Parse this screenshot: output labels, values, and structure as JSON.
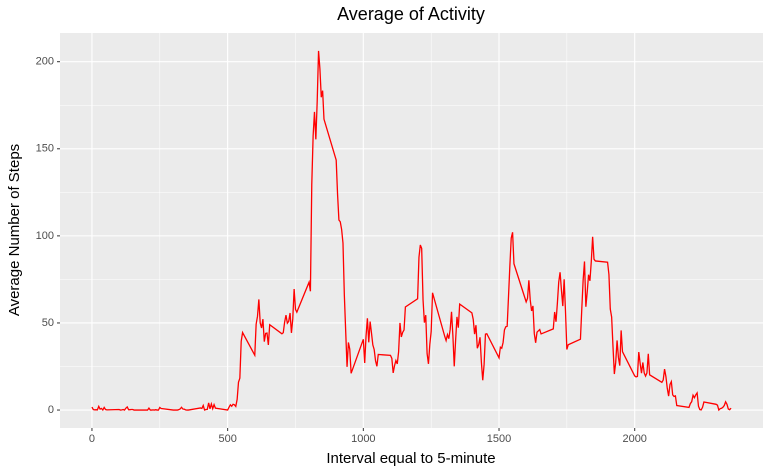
{
  "chart_data": {
    "type": "line",
    "title": "Average of Activity",
    "x_label": "Interval equal to 5-minute",
    "y_label": "Average Number of Steps",
    "xlim": [
      -117.75,
      2472.75
    ],
    "xticks": [
      0,
      500,
      1000,
      1500,
      2000
    ],
    "ylim": [
      -10.31,
      216.48
    ],
    "yticks": [
      0,
      50,
      100,
      150,
      200
    ],
    "grid": true,
    "series": [
      {
        "color": "#ff0000",
        "x": [
          0,
          5,
          10,
          15,
          20,
          25,
          30,
          35,
          40,
          45,
          50,
          55,
          100,
          105,
          110,
          115,
          120,
          125,
          130,
          135,
          140,
          145,
          150,
          155,
          200,
          205,
          210,
          215,
          220,
          225,
          230,
          235,
          240,
          245,
          250,
          255,
          300,
          305,
          310,
          315,
          320,
          325,
          330,
          335,
          340,
          345,
          350,
          355,
          400,
          405,
          410,
          415,
          420,
          425,
          430,
          435,
          440,
          445,
          450,
          455,
          500,
          505,
          510,
          515,
          520,
          525,
          530,
          535,
          540,
          545,
          550,
          555,
          600,
          605,
          610,
          615,
          620,
          625,
          630,
          635,
          640,
          645,
          650,
          655,
          700,
          705,
          710,
          715,
          720,
          725,
          730,
          735,
          740,
          745,
          750,
          755,
          800,
          805,
          810,
          815,
          820,
          825,
          830,
          835,
          840,
          845,
          850,
          855,
          900,
          905,
          910,
          915,
          920,
          925,
          930,
          935,
          940,
          945,
          950,
          955,
          1000,
          1005,
          1010,
          1015,
          1020,
          1025,
          1030,
          1035,
          1040,
          1045,
          1050,
          1055,
          1100,
          1105,
          1110,
          1115,
          1120,
          1125,
          1130,
          1135,
          1140,
          1145,
          1150,
          1155,
          1200,
          1205,
          1210,
          1215,
          1220,
          1225,
          1230,
          1235,
          1240,
          1245,
          1250,
          1255,
          1300,
          1305,
          1310,
          1315,
          1320,
          1325,
          1330,
          1335,
          1340,
          1345,
          1350,
          1355,
          1400,
          1405,
          1410,
          1415,
          1420,
          1425,
          1430,
          1435,
          1440,
          1445,
          1450,
          1455,
          1500,
          1505,
          1510,
          1515,
          1520,
          1525,
          1530,
          1535,
          1540,
          1545,
          1550,
          1555,
          1600,
          1605,
          1610,
          1615,
          1620,
          1625,
          1630,
          1635,
          1640,
          1645,
          1650,
          1655,
          1700,
          1705,
          1710,
          1715,
          1720,
          1725,
          1730,
          1735,
          1740,
          1745,
          1750,
          1755,
          1800,
          1805,
          1810,
          1815,
          1820,
          1825,
          1830,
          1835,
          1840,
          1845,
          1850,
          1855,
          1900,
          1905,
          1910,
          1915,
          1920,
          1925,
          1930,
          1935,
          1940,
          1945,
          1950,
          1955,
          2000,
          2005,
          2010,
          2015,
          2020,
          2025,
          2030,
          2035,
          2040,
          2045,
          2050,
          2055,
          2100,
          2105,
          2110,
          2115,
          2120,
          2125,
          2130,
          2135,
          2140,
          2145,
          2150,
          2155,
          2200,
          2205,
          2210,
          2215,
          2220,
          2225,
          2230,
          2235,
          2240,
          2245,
          2250,
          2255,
          2300,
          2305,
          2310,
          2315,
          2320,
          2325,
          2330,
          2335,
          2340,
          2345,
          2350,
          2355
        ],
        "values": [
          1.7,
          0.3,
          0.1,
          0.2,
          0.1,
          2.1,
          0.5,
          0.9,
          0,
          1.5,
          0.3,
          0.1,
          0.3,
          0,
          0.1,
          0.3,
          0,
          1.1,
          1.8,
          0.2,
          0.2,
          0.3,
          0.3,
          0,
          0,
          0,
          1.1,
          0,
          0,
          0.1,
          0,
          0.2,
          0,
          0,
          1.5,
          0.9,
          0,
          0,
          0,
          0,
          0.2,
          0.6,
          1.6,
          0.6,
          0.5,
          0.1,
          0,
          0,
          1.2,
          0.9,
          2.6,
          0,
          0.3,
          0.4,
          4.1,
          0.7,
          3.5,
          0.8,
          3.1,
          1.1,
          0,
          1.6,
          3,
          2.2,
          3.3,
          3,
          2.1,
          6.1,
          16,
          18.3,
          39.5,
          44.5,
          31.5,
          49.3,
          53.8,
          63.5,
          50,
          47.1,
          52.2,
          39.3,
          44,
          44.2,
          37.4,
          49,
          43.8,
          44.4,
          50.5,
          54.5,
          49.9,
          50.9,
          55.7,
          44.3,
          52.3,
          69.5,
          57.8,
          56.2,
          73.4,
          68.2,
          129.4,
          157.5,
          171.2,
          155.4,
          177.3,
          206.2,
          195.9,
          179.6,
          183.4,
          167,
          143.5,
          124,
          109.1,
          108.1,
          103.7,
          95.9,
          66.2,
          45.2,
          24.8,
          38.8,
          35,
          21.1,
          40.6,
          27,
          42.4,
          52.7,
          38.9,
          50.8,
          44.3,
          37.4,
          34.7,
          28.3,
          25.1,
          31.9,
          31.4,
          29.7,
          21.3,
          25.5,
          28.4,
          26.5,
          33.4,
          50,
          42,
          44.6,
          46,
          59.2,
          63.9,
          87.7,
          94.8,
          92.8,
          63.4,
          50.2,
          54.5,
          32.4,
          26.5,
          37.7,
          45.1,
          67.3,
          42.3,
          39.9,
          43.3,
          41,
          46.2,
          56.4,
          42.8,
          25.1,
          39.9,
          53.5,
          47.3,
          60.8,
          55.8,
          52,
          43.6,
          48.7,
          35.5,
          37.5,
          41.8,
          27.5,
          17.1,
          26.1,
          43.6,
          43.8,
          30,
          36.1,
          35.5,
          38.8,
          46,
          47.8,
          48.1,
          65.3,
          82.9,
          98.7,
          102.1,
          84,
          62.1,
          64.1,
          74.5,
          63.2,
          56.9,
          59.8,
          43.9,
          38.6,
          44.7,
          45.5,
          46.2,
          43.7,
          46.6,
          56.3,
          50.7,
          61.2,
          73.4,
          79.1,
          68.9,
          59.7,
          75.1,
          56.5,
          34.8,
          37.5,
          40.7,
          58,
          74.7,
          85.3,
          59.3,
          67.8,
          77.7,
          74.2,
          85.3,
          99.5,
          86.6,
          85.6,
          84.9,
          77.8,
          58,
          53.4,
          36.3,
          20.7,
          27.4,
          40,
          30.2,
          25.5,
          45.7,
          33.5,
          19.6,
          19,
          19.3,
          33.3,
          26.8,
          21.2,
          27.3,
          21.3,
          19.5,
          21.3,
          32.3,
          20.2,
          15.9,
          17.2,
          23.5,
          19.2,
          12.5,
          8,
          14.7,
          16.3,
          8.7,
          7.8,
          8.1,
          2.6,
          1.5,
          3.7,
          4.8,
          8.5,
          7.1,
          8.7,
          9.8,
          2.2,
          0.3,
          0.1,
          1.6,
          4.6,
          3.3,
          2.8,
          0,
          0.8,
          1,
          1.6,
          2.6,
          4.7,
          3.3,
          0.6,
          0.2,
          1.1
        ]
      }
    ]
  }
}
